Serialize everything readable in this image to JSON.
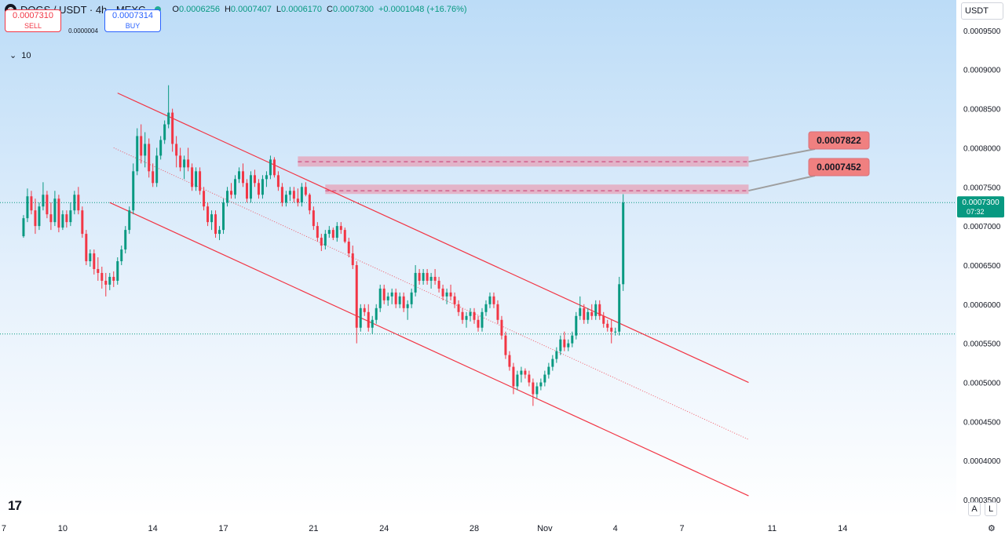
{
  "header": {
    "symbol": "DOGS / USDT · 4h · MEXC",
    "logo_icon": "dogs-logo-icon",
    "ohlc": [
      {
        "key": "O",
        "value": "0.0006256"
      },
      {
        "key": "H",
        "value": "0.0007407"
      },
      {
        "key": "L",
        "value": "0.0006170"
      },
      {
        "key": "C",
        "value": "0.0007300"
      }
    ],
    "change": "+0.0001048 (+16.76%)"
  },
  "trade": {
    "sell_price": "0.0007310",
    "sell_label": "SELL",
    "spread": "0.0000004",
    "buy_price": "0.0007314",
    "buy_label": "BUY"
  },
  "volume_indicator": {
    "label": "10",
    "icon": "chevron-down-icon"
  },
  "currency_select": "USDT",
  "bottom_buttons": {
    "auto": "A",
    "log": "L"
  },
  "price_tag": {
    "price": "0.0007300",
    "countdown": "07:32"
  },
  "colors": {
    "up": "#089981",
    "down": "#f23645",
    "channel": "#f23645",
    "zone_fill": "#e7a1b7",
    "zone_label": "#f08080",
    "last_price": "#089981",
    "background_top": "#bcdcf7",
    "background_bottom": "#ffffff"
  },
  "chart_data": {
    "type": "candlestick",
    "timeframe": "4h",
    "y_axis": {
      "ticks": [
        "0.0009500",
        "0.0009000",
        "0.0008500",
        "0.0008000",
        "0.0007500",
        "0.0007000",
        "0.0006500",
        "0.0006000",
        "0.0005500",
        "0.0005000",
        "0.0004500",
        "0.0004000",
        "0.0003500"
      ],
      "range": [
        0.000327,
        0.000989
      ]
    },
    "x_axis": {
      "ticks": [
        "7",
        "10",
        "14",
        "17",
        "21",
        "24",
        "28",
        "Nov",
        "4",
        "7",
        "11",
        "14"
      ],
      "ticks_index": [
        -5,
        10,
        33,
        51,
        74,
        92,
        115,
        133,
        151,
        168,
        191,
        209
      ],
      "range_index": [
        -6,
        238
      ]
    },
    "candles": [
      [
        0.000687,
        0.000714,
        0.000685,
        0.00071
      ],
      [
        0.00071,
        0.000748,
        0.000705,
        0.000738
      ],
      [
        0.000738,
        0.000745,
        0.000715,
        0.00072
      ],
      [
        0.00072,
        0.000735,
        0.00069,
        0.0007
      ],
      [
        0.0007,
        0.00073,
        0.000695,
        0.000725
      ],
      [
        0.000725,
        0.000756,
        0.00072,
        0.00074
      ],
      [
        0.00074,
        0.000745,
        0.00071,
        0.000715
      ],
      [
        0.000715,
        0.00073,
        0.000695,
        0.000705
      ],
      [
        0.000705,
        0.000745,
        0.0007,
        0.000735
      ],
      [
        0.000735,
        0.00074,
        0.000692,
        0.000698
      ],
      [
        0.000698,
        0.00072,
        0.000695,
        0.000715
      ],
      [
        0.000715,
        0.00072,
        0.000698,
        0.000705
      ],
      [
        0.000705,
        0.00073,
        0.0007,
        0.00072
      ],
      [
        0.00072,
        0.000745,
        0.000715,
        0.00074
      ],
      [
        0.00074,
        0.00075,
        0.000715,
        0.00072
      ],
      [
        0.00072,
        0.000725,
        0.000685,
        0.00069
      ],
      [
        0.00069,
        0.000695,
        0.00065,
        0.000655
      ],
      [
        0.000655,
        0.00067,
        0.000648,
        0.000665
      ],
      [
        0.000665,
        0.00067,
        0.000638,
        0.000645
      ],
      [
        0.000645,
        0.00066,
        0.00063,
        0.00064
      ],
      [
        0.00064,
        0.000648,
        0.00062,
        0.00063
      ],
      [
        0.00063,
        0.00064,
        0.00061,
        0.000625
      ],
      [
        0.000625,
        0.00064,
        0.000618,
        0.000635
      ],
      [
        0.000635,
        0.000642,
        0.000622,
        0.00063
      ],
      [
        0.00063,
        0.00066,
        0.000625,
        0.000655
      ],
      [
        0.000655,
        0.000675,
        0.00065,
        0.00067
      ],
      [
        0.00067,
        0.0007,
        0.000665,
        0.000695
      ],
      [
        0.000695,
        0.000725,
        0.00069,
        0.00072
      ],
      [
        0.00072,
        0.00078,
        0.000715,
        0.00077
      ],
      [
        0.00077,
        0.000825,
        0.000765,
        0.000815
      ],
      [
        0.000815,
        0.00083,
        0.00078,
        0.00079
      ],
      [
        0.00079,
        0.00082,
        0.000775,
        0.000805
      ],
      [
        0.000805,
        0.000812,
        0.000762,
        0.00077
      ],
      [
        0.00077,
        0.00078,
        0.00075,
        0.000755
      ],
      [
        0.000755,
        0.0008,
        0.00075,
        0.00079
      ],
      [
        0.00079,
        0.000815,
        0.000785,
        0.00081
      ],
      [
        0.00081,
        0.000835,
        0.000805,
        0.00083
      ],
      [
        0.00083,
        0.00088,
        0.000825,
        0.000845
      ],
      [
        0.000845,
        0.00085,
        0.000795,
        0.000805
      ],
      [
        0.000805,
        0.000815,
        0.000775,
        0.00079
      ],
      [
        0.00079,
        0.0008,
        0.00077,
        0.000775
      ],
      [
        0.000775,
        0.00079,
        0.00076,
        0.000785
      ],
      [
        0.000785,
        0.0008,
        0.00077,
        0.000775
      ],
      [
        0.000775,
        0.00078,
        0.000745,
        0.00075
      ],
      [
        0.00075,
        0.000775,
        0.000745,
        0.00077
      ],
      [
        0.00077,
        0.000775,
        0.00074,
        0.000745
      ],
      [
        0.000745,
        0.00075,
        0.00072,
        0.000725
      ],
      [
        0.000725,
        0.00073,
        0.0007,
        0.000705
      ],
      [
        0.000705,
        0.00072,
        0.000695,
        0.000715
      ],
      [
        0.000715,
        0.00072,
        0.000685,
        0.00069
      ],
      [
        0.00069,
        0.0007,
        0.000682,
        0.000695
      ],
      [
        0.000695,
        0.000735,
        0.00069,
        0.00073
      ],
      [
        0.00073,
        0.00075,
        0.000725,
        0.000745
      ],
      [
        0.000745,
        0.000755,
        0.000735,
        0.00074
      ],
      [
        0.00074,
        0.000765,
        0.000735,
        0.00076
      ],
      [
        0.00076,
        0.000775,
        0.000755,
        0.00077
      ],
      [
        0.00077,
        0.00078,
        0.00075,
        0.000755
      ],
      [
        0.000755,
        0.00076,
        0.00073,
        0.000735
      ],
      [
        0.000735,
        0.00077,
        0.00073,
        0.000765
      ],
      [
        0.000765,
        0.000772,
        0.00075,
        0.000755
      ],
      [
        0.000755,
        0.00076,
        0.000735,
        0.00074
      ],
      [
        0.00074,
        0.000765,
        0.000735,
        0.00076
      ],
      [
        0.00076,
        0.00077,
        0.00075,
        0.000765
      ],
      [
        0.000765,
        0.00079,
        0.00076,
        0.000785
      ],
      [
        0.000785,
        0.000788,
        0.000762,
        0.000765
      ],
      [
        0.000765,
        0.00077,
        0.000745,
        0.00075
      ],
      [
        0.00075,
        0.000755,
        0.000725,
        0.00073
      ],
      [
        0.00073,
        0.000745,
        0.000725,
        0.00074
      ],
      [
        0.00074,
        0.00075,
        0.000732,
        0.000745
      ],
      [
        0.000745,
        0.00075,
        0.00073,
        0.000735
      ],
      [
        0.000735,
        0.000748,
        0.000725,
        0.00073
      ],
      [
        0.00073,
        0.000755,
        0.000725,
        0.00075
      ],
      [
        0.00075,
        0.000756,
        0.000738,
        0.00074
      ],
      [
        0.00074,
        0.000742,
        0.000715,
        0.00072
      ],
      [
        0.00072,
        0.000725,
        0.000695,
        0.0007
      ],
      [
        0.0007,
        0.000705,
        0.00068,
        0.000685
      ],
      [
        0.000685,
        0.00069,
        0.000668,
        0.000675
      ],
      [
        0.000675,
        0.000695,
        0.00067,
        0.00069
      ],
      [
        0.00069,
        0.0007,
        0.000685,
        0.000695
      ],
      [
        0.000695,
        0.000698,
        0.000682,
        0.000685
      ],
      [
        0.000685,
        0.000705,
        0.00068,
        0.0007
      ],
      [
        0.0007,
        0.000705,
        0.00069,
        0.000695
      ],
      [
        0.000695,
        0.000698,
        0.000678,
        0.00068
      ],
      [
        0.00068,
        0.000685,
        0.00066,
        0.000665
      ],
      [
        0.000665,
        0.000675,
        0.000645,
        0.00065
      ],
      [
        0.00065,
        0.000655,
        0.00055,
        0.00057
      ],
      [
        0.00057,
        0.0006,
        0.000565,
        0.000595
      ],
      [
        0.000595,
        0.0006,
        0.000585,
        0.00059
      ],
      [
        0.00059,
        0.0006,
        0.000565,
        0.00057
      ],
      [
        0.00057,
        0.000585,
        0.000562,
        0.00058
      ],
      [
        0.00058,
        0.0006,
        0.000575,
        0.000595
      ],
      [
        0.000595,
        0.000625,
        0.00059,
        0.00062
      ],
      [
        0.00062,
        0.000625,
        0.0006,
        0.000605
      ],
      [
        0.000605,
        0.000615,
        0.000598,
        0.00061
      ],
      [
        0.00061,
        0.00062,
        0.0006,
        0.000615
      ],
      [
        0.000615,
        0.00062,
        0.000595,
        0.0006
      ],
      [
        0.0006,
        0.000615,
        0.000595,
        0.00061
      ],
      [
        0.00061,
        0.000615,
        0.00059,
        0.000595
      ],
      [
        0.000595,
        0.000605,
        0.00058,
        0.0006
      ],
      [
        0.0006,
        0.00062,
        0.000595,
        0.000615
      ],
      [
        0.000615,
        0.00065,
        0.00061,
        0.00064
      ],
      [
        0.00064,
        0.000645,
        0.000625,
        0.00063
      ],
      [
        0.00063,
        0.000645,
        0.000625,
        0.00064
      ],
      [
        0.00064,
        0.000645,
        0.000625,
        0.00063
      ],
      [
        0.00063,
        0.00064,
        0.00062,
        0.000635
      ],
      [
        0.000635,
        0.000645,
        0.000625,
        0.00063
      ],
      [
        0.00063,
        0.000635,
        0.000615,
        0.00062
      ],
      [
        0.00062,
        0.000625,
        0.000605,
        0.00061
      ],
      [
        0.00061,
        0.00062,
        0.0006,
        0.000615
      ],
      [
        0.000615,
        0.000625,
        0.000605,
        0.00061
      ],
      [
        0.00061,
        0.000615,
        0.000595,
        0.0006
      ],
      [
        0.0006,
        0.000605,
        0.000585,
        0.00059
      ],
      [
        0.00059,
        0.000595,
        0.000575,
        0.00058
      ],
      [
        0.00058,
        0.00059,
        0.00057,
        0.000585
      ],
      [
        0.000585,
        0.000595,
        0.000578,
        0.00059
      ],
      [
        0.00059,
        0.000595,
        0.000575,
        0.00058
      ],
      [
        0.00058,
        0.000585,
        0.000565,
        0.00057
      ],
      [
        0.00057,
        0.000595,
        0.000565,
        0.00059
      ],
      [
        0.00059,
        0.000605,
        0.000585,
        0.0006
      ],
      [
        0.0006,
        0.000615,
        0.000595,
        0.00061
      ],
      [
        0.00061,
        0.000615,
        0.000595,
        0.0006
      ],
      [
        0.0006,
        0.000605,
        0.000575,
        0.00058
      ],
      [
        0.00058,
        0.000585,
        0.000555,
        0.00056
      ],
      [
        0.00056,
        0.000565,
        0.00053,
        0.000535
      ],
      [
        0.000535,
        0.00054,
        0.000515,
        0.00052
      ],
      [
        0.00052,
        0.000525,
        0.000485,
        0.000495
      ],
      [
        0.000495,
        0.000515,
        0.00049,
        0.00051
      ],
      [
        0.00051,
        0.00052,
        0.0005,
        0.000515
      ],
      [
        0.000515,
        0.000518,
        0.000505,
        0.00051
      ],
      [
        0.00051,
        0.000515,
        0.000495,
        0.0005
      ],
      [
        0.0005,
        0.000505,
        0.00047,
        0.000485
      ],
      [
        0.000485,
        0.0005,
        0.00048,
        0.000495
      ],
      [
        0.000495,
        0.000505,
        0.00049,
        0.0005
      ],
      [
        0.0005,
        0.000515,
        0.000495,
        0.00051
      ],
      [
        0.00051,
        0.000525,
        0.000505,
        0.00052
      ],
      [
        0.00052,
        0.000535,
        0.000515,
        0.00053
      ],
      [
        0.00053,
        0.000545,
        0.000525,
        0.00054
      ],
      [
        0.00054,
        0.00056,
        0.000535,
        0.000555
      ],
      [
        0.000555,
        0.000565,
        0.00054,
        0.000545
      ],
      [
        0.000545,
        0.000555,
        0.00054,
        0.00055
      ],
      [
        0.00055,
        0.000565,
        0.000545,
        0.00056
      ],
      [
        0.00056,
        0.00059,
        0.000555,
        0.000585
      ],
      [
        0.000585,
        0.00061,
        0.00058,
        0.000595
      ],
      [
        0.000595,
        0.0006,
        0.000575,
        0.00058
      ],
      [
        0.00058,
        0.000595,
        0.000575,
        0.00059
      ],
      [
        0.00059,
        0.0006,
        0.00058,
        0.000585
      ],
      [
        0.000585,
        0.000605,
        0.00058,
        0.0006
      ],
      [
        0.0006,
        0.000605,
        0.00058,
        0.000585
      ],
      [
        0.000585,
        0.00059,
        0.00057,
        0.000575
      ],
      [
        0.000575,
        0.00058,
        0.000565,
        0.00057
      ],
      [
        0.00057,
        0.00058,
        0.00055,
        0.000565
      ],
      [
        0.000565,
        0.00057,
        0.00056,
        0.000565
      ],
      [
        0.000565,
        0.000635,
        0.00056,
        0.0006256
      ],
      [
        0.0006256,
        0.0007407,
        0.000617,
        0.00073
      ]
    ],
    "channel": {
      "upper": [
        [
          24,
          0.00087
        ],
        [
          185,
          0.0005
        ]
      ],
      "lower": [
        [
          22,
          0.00073
        ],
        [
          185,
          0.000355
        ]
      ],
      "mid_dotted": [
        [
          23,
          0.0008
        ],
        [
          185,
          0.000427
        ]
      ]
    },
    "resistance_zones": [
      {
        "price": 0.0007822,
        "band": [
          0.000776,
          0.000789
        ],
        "from_index": 70,
        "to_index": 185,
        "label": "0.0007822"
      },
      {
        "price": 0.0007452,
        "band": [
          0.000741,
          0.000753
        ],
        "from_index": 77,
        "to_index": 185,
        "label": "0.0007452"
      }
    ],
    "reference_lines": [
      {
        "price": 0.00073,
        "style": "dotted",
        "color": "#089981"
      },
      {
        "price": 0.000562,
        "style": "dotted",
        "color": "#089981"
      }
    ],
    "last_price": 0.00073
  }
}
